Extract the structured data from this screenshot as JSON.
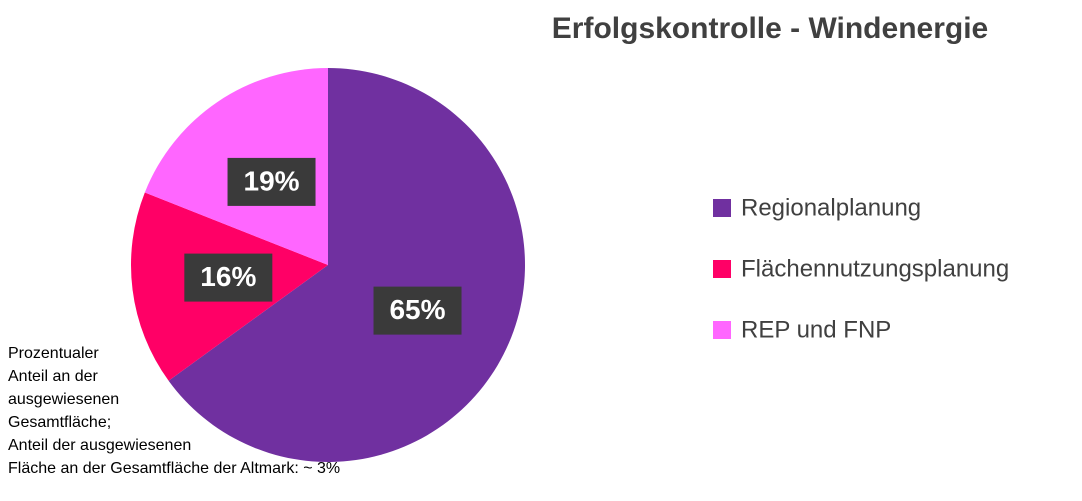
{
  "chart_data": {
    "type": "pie",
    "title": "Erfolgskontrolle - Windenergie",
    "categories": [
      "Regionalplanung",
      "Flächennutzungsplanung",
      "REP und FNP"
    ],
    "values": [
      65,
      16,
      19
    ],
    "value_labels": [
      "65%",
      "16%",
      "19%"
    ],
    "colors": [
      "#7030a0",
      "#ff0066",
      "#ff66ff"
    ],
    "legend": "right",
    "annotation": [
      "Prozentualer",
      "Anteil an der",
      "ausgewiesenen",
      "Gesamtfläche;",
      "Anteil der ausgewiesenen",
      "Fläche an der Gesamtfläche der Altmark: ~ 3%"
    ]
  }
}
